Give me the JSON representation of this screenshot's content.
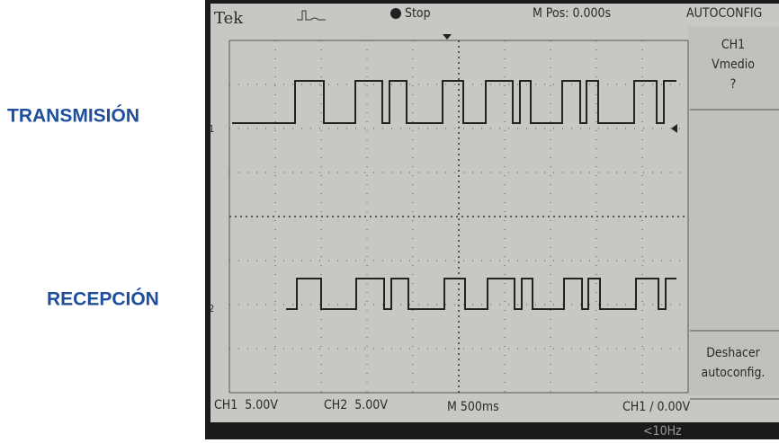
{
  "labels": {
    "channel1": "TRANSMISIÓN",
    "channel2": "RECEPCIÓN"
  },
  "screen": {
    "brand": "Tek",
    "state": "Stop",
    "position": "M Pos: 0.000s",
    "menu": {
      "title": "AUTOCONFIG",
      "item1": [
        "CH1",
        "Vmedio",
        "?"
      ],
      "item2": [
        "Deshacer",
        "autoconfig."
      ]
    },
    "markers": [
      "1",
      "2"
    ],
    "status": {
      "ch1": "CH1  5.00V",
      "ch2": "CH2  5.00V",
      "timebase": "M 500ms",
      "trigger": "CH1 ∕ 0.00V",
      "frequency": "<10Hz"
    }
  }
}
